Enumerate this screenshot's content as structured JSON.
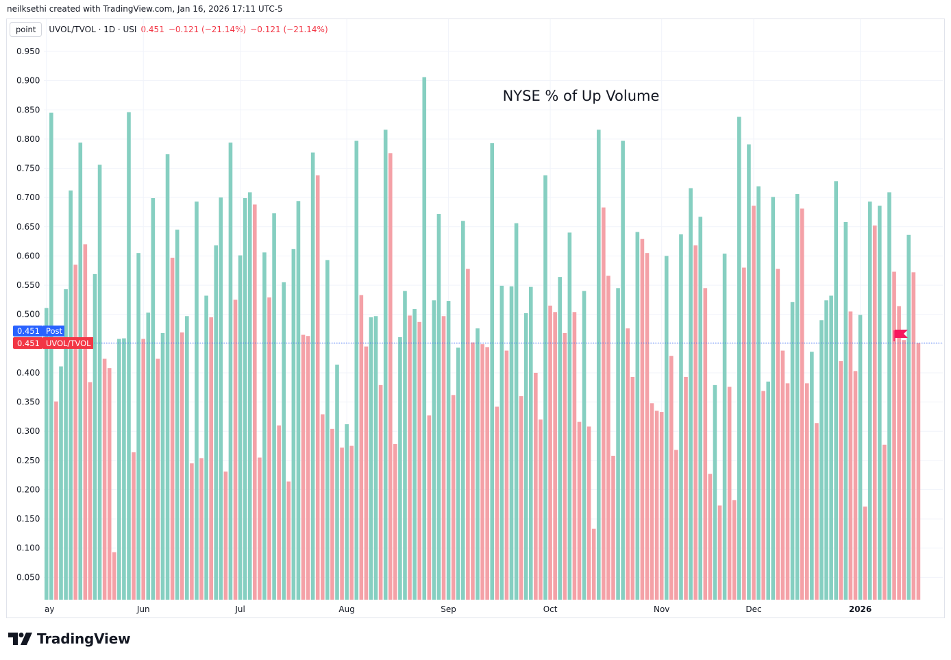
{
  "header": {
    "credit": "neilksethi created with TradingView.com, Jan 16, 2026 17:11 UTC-5"
  },
  "legend": {
    "mode_button": "point",
    "symbol": "UVOL/TVOL · 1D · USI",
    "last": "0.451",
    "change": "−0.121 (−21.14%)",
    "change2": "−0.121 (−21.14%)"
  },
  "price_tags": {
    "post_value": "0.451",
    "post_label": "Post",
    "series_value": "0.451",
    "series_label": "UVOL/TVOL"
  },
  "footer": {
    "brand": "TradingView",
    "logo_icon": "tradingview-logo-icon"
  },
  "colors": {
    "up": "#86cfc1",
    "down": "#f4a1a7",
    "post_tag": "#2962ff",
    "series_tag": "#f23645",
    "flag": "#f7175e"
  },
  "chart_data": {
    "type": "bar",
    "title": "NYSE % of Up Volume",
    "xlabel": "",
    "ylabel": "",
    "ylim": [
      0,
      0.95
    ],
    "yticks": [
      "0.050",
      "0.100",
      "0.150",
      "0.200",
      "0.250",
      "0.300",
      "0.350",
      "0.400",
      "0.450",
      "0.500",
      "0.550",
      "0.600",
      "0.650",
      "0.700",
      "0.750",
      "0.800",
      "0.850",
      "0.900",
      "0.950"
    ],
    "xticks": [
      {
        "label": "ay",
        "index": 0,
        "bold": false
      },
      {
        "label": "Jun",
        "index": 20,
        "bold": false
      },
      {
        "label": "Jul",
        "index": 40,
        "bold": false
      },
      {
        "label": "Aug",
        "index": 62,
        "bold": false
      },
      {
        "label": "Sep",
        "index": 83,
        "bold": false
      },
      {
        "label": "Oct",
        "index": 104,
        "bold": false
      },
      {
        "label": "Nov",
        "index": 127,
        "bold": false
      },
      {
        "label": "Dec",
        "index": 146,
        "bold": false
      },
      {
        "label": "2026",
        "index": 168,
        "bold": true
      }
    ],
    "last_value": 0.451,
    "grid": true,
    "values": [
      0.511,
      0.845,
      0.351,
      0.411,
      0.543,
      0.712,
      0.585,
      0.794,
      0.62,
      0.384,
      0.569,
      0.756,
      0.424,
      0.408,
      0.093,
      0.458,
      0.459,
      0.846,
      0.264,
      0.605,
      0.458,
      0.503,
      0.699,
      0.424,
      0.468,
      0.774,
      0.597,
      0.645,
      0.469,
      0.497,
      0.245,
      0.693,
      0.254,
      0.532,
      0.495,
      0.618,
      0.7,
      0.231,
      0.794,
      0.525,
      0.601,
      0.699,
      0.709,
      0.688,
      0.255,
      0.606,
      0.529,
      0.673,
      0.31,
      0.555,
      0.214,
      0.612,
      0.694,
      0.465,
      0.463,
      0.777,
      0.738,
      0.329,
      0.593,
      0.304,
      0.414,
      0.272,
      0.312,
      0.275,
      0.797,
      0.533,
      0.445,
      0.495,
      0.497,
      0.379,
      0.816,
      0.776,
      0.278,
      0.461,
      0.54,
      0.498,
      0.509,
      0.487,
      0.906,
      0.327,
      0.524,
      0.672,
      0.497,
      0.523,
      0.362,
      0.443,
      0.66,
      0.578,
      0.452,
      0.476,
      0.449,
      0.444,
      0.793,
      0.342,
      0.549,
      0.438,
      0.548,
      0.656,
      0.36,
      0.502,
      0.547,
      0.4,
      0.32,
      0.738,
      0.515,
      0.504,
      0.564,
      0.468,
      0.64,
      0.504,
      0.316,
      0.54,
      0.308,
      0.133,
      0.816,
      0.683,
      0.566,
      0.258,
      0.545,
      0.797,
      0.476,
      0.393,
      0.641,
      0.629,
      0.605,
      0.348,
      0.335,
      0.333,
      0.6,
      0.429,
      0.268,
      0.637,
      0.393,
      0.716,
      0.618,
      0.667,
      0.545,
      0.227,
      0.379,
      0.173,
      0.604,
      0.376,
      0.182,
      0.838,
      0.58,
      0.791,
      0.686,
      0.719,
      0.369,
      0.385,
      0.701,
      0.578,
      0.438,
      0.382,
      0.521,
      0.706,
      0.681,
      0.382,
      0.436,
      0.314,
      0.49,
      0.524,
      0.532,
      0.728,
      0.42,
      0.658,
      0.505,
      0.403,
      0.499,
      0.171,
      0.693,
      0.652,
      0.686,
      0.277,
      0.709,
      0.573,
      0.514,
      0.456,
      0.636,
      0.572,
      0.451
    ]
  }
}
